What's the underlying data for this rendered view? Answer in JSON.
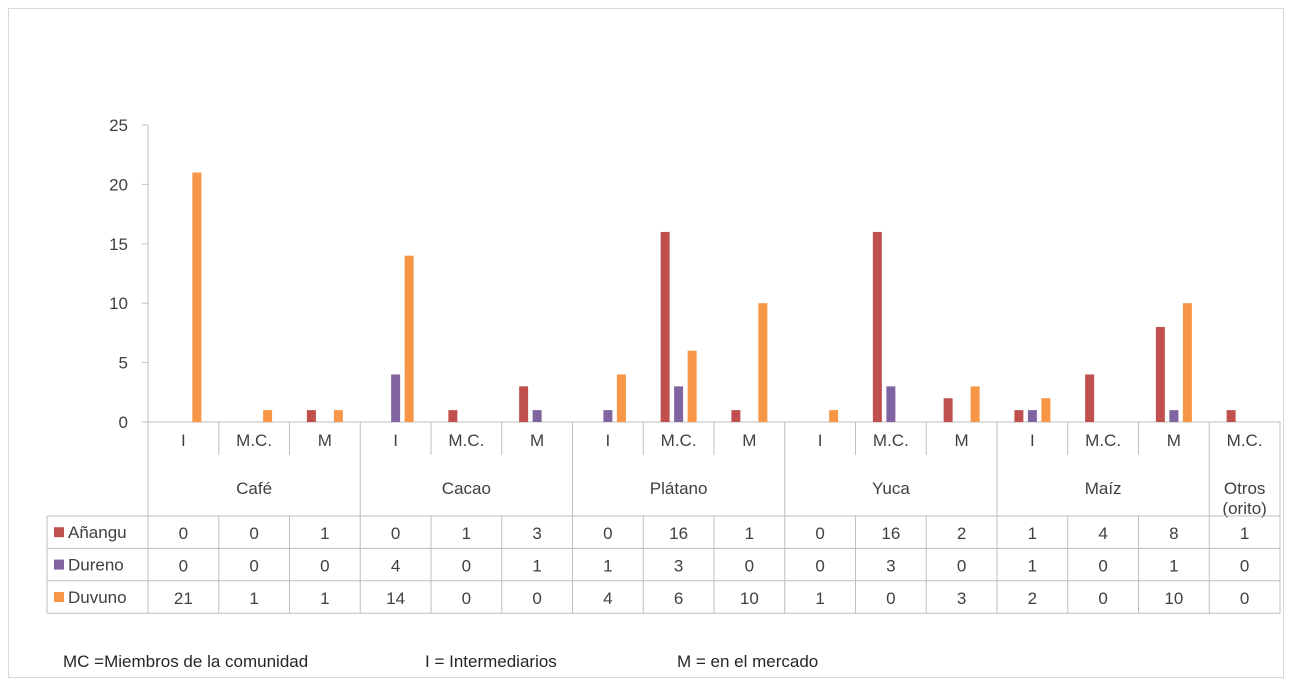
{
  "chart_data": {
    "type": "bar",
    "ylim": [
      0,
      25
    ],
    "yticks": [
      0,
      5,
      10,
      15,
      20,
      25
    ],
    "grid": false,
    "legend": "table",
    "groups": [
      {
        "label": "Café",
        "sub": [
          "I",
          "M.C.",
          "M"
        ]
      },
      {
        "label": "Cacao",
        "sub": [
          "I",
          "M.C.",
          "M"
        ]
      },
      {
        "label": "Plátano",
        "sub": [
          "I",
          "M.C.",
          "M"
        ]
      },
      {
        "label": "Yuca",
        "sub": [
          "I",
          "M.C.",
          "M"
        ]
      },
      {
        "label": "Maíz",
        "sub": [
          "I",
          "M.C.",
          "M"
        ]
      },
      {
        "label": "Otros (orito)",
        "sub": [
          "M.C."
        ]
      }
    ],
    "categories": [
      "I",
      "M.C.",
      "M",
      "I",
      "M.C.",
      "M",
      "I",
      "M.C.",
      "M",
      "I",
      "M.C.",
      "M",
      "I",
      "M.C.",
      "M",
      "M.C."
    ],
    "series": [
      {
        "name": "Añangu",
        "color": "#c0504d",
        "values": [
          0,
          0,
          1,
          0,
          1,
          3,
          0,
          16,
          1,
          0,
          16,
          2,
          1,
          4,
          8,
          1
        ]
      },
      {
        "name": "Dureno",
        "color": "#8064a2",
        "values": [
          0,
          0,
          0,
          4,
          0,
          1,
          1,
          3,
          0,
          0,
          3,
          0,
          1,
          0,
          1,
          0
        ]
      },
      {
        "name": "Duvuno",
        "color": "#f79646",
        "values": [
          21,
          1,
          1,
          14,
          0,
          0,
          4,
          6,
          10,
          1,
          0,
          3,
          2,
          0,
          10,
          0
        ]
      }
    ]
  },
  "footnote": {
    "mc": "MC =Miembros de la comunidad",
    "i": "I = Intermediarios",
    "m": "M = en el mercado"
  }
}
